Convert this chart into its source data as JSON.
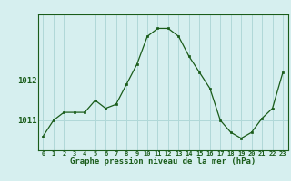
{
  "hours": [
    0,
    1,
    2,
    3,
    4,
    5,
    6,
    7,
    8,
    9,
    10,
    11,
    12,
    13,
    14,
    15,
    16,
    17,
    18,
    19,
    20,
    21,
    22,
    23
  ],
  "pressure": [
    1010.6,
    1011.0,
    1011.2,
    1011.2,
    1011.2,
    1011.5,
    1011.3,
    1011.4,
    1011.9,
    1012.4,
    1013.1,
    1013.3,
    1013.3,
    1013.1,
    1012.6,
    1012.2,
    1011.8,
    1011.0,
    1010.7,
    1010.55,
    1010.7,
    1011.05,
    1011.3,
    1012.2
  ],
  "line_color": "#1a5c1a",
  "marker_color": "#1a5c1a",
  "bg_color": "#d6efef",
  "grid_color": "#b0d8d8",
  "axis_label_color": "#1a5c1a",
  "tick_color": "#1a5c1a",
  "xlabel": "Graphe pression niveau de la mer (hPa)",
  "ylim_min": 1010.25,
  "ylim_max": 1013.65,
  "yticks": [
    1011,
    1012
  ],
  "border_color": "#1a5c1a"
}
